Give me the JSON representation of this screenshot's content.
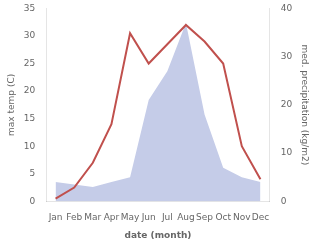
{
  "chart_data": {
    "type": "line",
    "xlabel": "date (month)",
    "ylabel": "max temp (C)",
    "y2label": "med. precipitation (kg/m2)",
    "categories": [
      "Jan",
      "Feb",
      "Mar",
      "Apr",
      "May",
      "Jun",
      "Jul",
      "Aug",
      "Sep",
      "Oct",
      "Nov",
      "Dec"
    ],
    "series": [
      {
        "type": "area",
        "axis": "y2",
        "color": "#c5cce8",
        "values": [
          4,
          3.5,
          3,
          4,
          5,
          21,
          27,
          37,
          18,
          7,
          5,
          4
        ]
      },
      {
        "type": "line",
        "color": "#c0504d",
        "values": [
          0.5,
          2.5,
          7,
          14,
          30.5,
          25,
          28.5,
          32,
          29,
          25,
          10,
          4
        ]
      }
    ],
    "ylim": [
      0,
      35
    ],
    "yticks": [
      0,
      5,
      10,
      15,
      20,
      25,
      30,
      35
    ],
    "y2lim": [
      0,
      40
    ],
    "y2ticks": [
      0,
      10,
      20,
      30,
      40
    ],
    "grid": false
  }
}
